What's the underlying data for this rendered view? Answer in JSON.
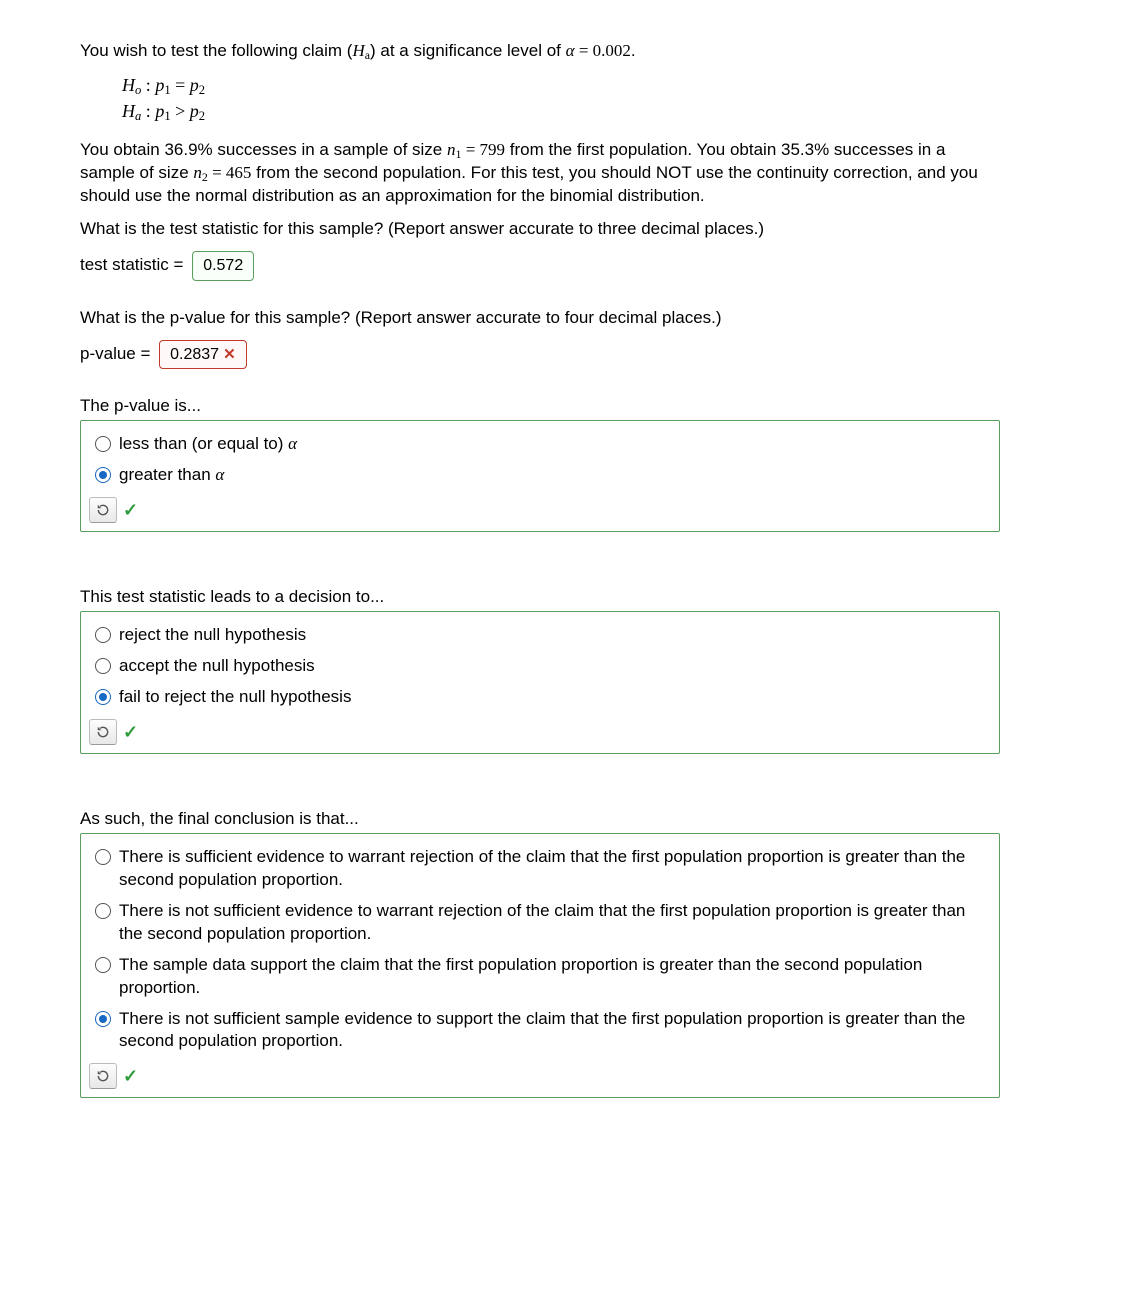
{
  "intro_a": "You wish to test the following claim (",
  "intro_b": ") at a significance level of ",
  "alpha_eq": "α = 0.002",
  "period": ".",
  "hyp_ho_label": "H",
  "hyp_ho_sub": "o",
  "hyp_ho_body": ": p₁ = p₂",
  "hyp_ha_label": "H",
  "hyp_ha_sub": "a",
  "hyp_ha_body": ": p₁ > p₂",
  "para2_a": "You obtain 36.9% successes in a sample of size ",
  "para2_n1": "n₁ = 799",
  "para2_b": " from the first population. You obtain 35.3% successes in a sample of size ",
  "para2_n2": "n₂ = 465",
  "para2_c": " from the second population. For this test, you should NOT use the continuity correction, and you should use the normal distribution as an approximation for the binomial distribution.",
  "q_ts": "What is the test statistic for this sample? (Report answer accurate to three decimal places.)",
  "ts_label": "test statistic = ",
  "ts_value": "0.572",
  "q_pv": "What is the p-value for this sample? (Report answer accurate to four decimal places.)",
  "pv_label": "p-value = ",
  "pv_value": "0.2837",
  "sec1_prompt": "The p-value is...",
  "sec1_opts": [
    "less than (or equal to) α",
    "greater than α"
  ],
  "sec1_selected": 1,
  "sec2_prompt": "This test statistic leads to a decision to...",
  "sec2_opts": [
    "reject the null hypothesis",
    "accept the null hypothesis",
    "fail to reject the null hypothesis"
  ],
  "sec2_selected": 2,
  "sec3_prompt": "As such, the final conclusion is that...",
  "sec3_opts": [
    "There is sufficient evidence to warrant rejection of the claim that the first population proportion is greater than the second population proportion.",
    "There is not sufficient evidence to warrant rejection of the claim that the first population proportion is greater than the second population proportion.",
    "The sample data support the claim that the first population proportion is greater than the second population proportion.",
    "There is not sufficient sample evidence to support the claim that the first population proportion is greater than the second population proportion."
  ],
  "sec3_selected": 3,
  "checkmark": "✓",
  "reload_glyph": "⟲"
}
